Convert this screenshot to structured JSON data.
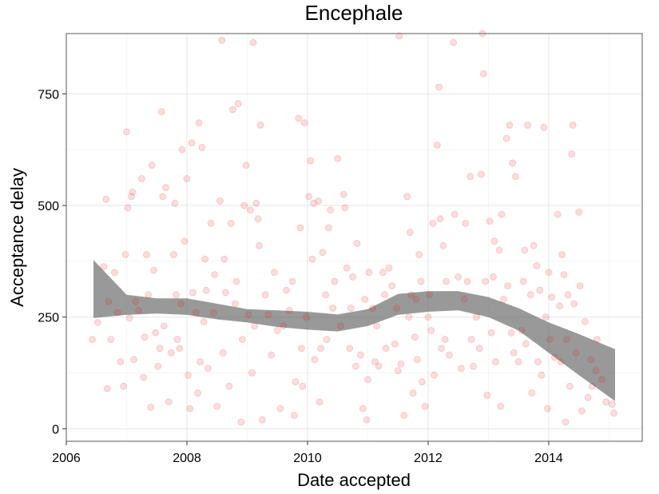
{
  "chart_data": {
    "type": "scatter",
    "title": "Encephale",
    "xlabel": "Date accepted",
    "ylabel": "Acceptance delay",
    "xlim": [
      2006.0,
      2015.55
    ],
    "ylim": [
      -28,
      885
    ],
    "xticks": [
      2006,
      2008,
      2010,
      2012,
      2014
    ],
    "xtick_labels": [
      "2006",
      "2008",
      "2010",
      "2012",
      "2014"
    ],
    "yticks": [
      0,
      250,
      500,
      750
    ],
    "ytick_labels": [
      "0",
      "250",
      "500",
      "750"
    ],
    "grid": true,
    "legend": "none",
    "point_color": "#e41a1c",
    "point_alpha": 0.15,
    "band_color": "#555555",
    "series": [
      {
        "type": "scatter",
        "points": [
          [
            2006.43,
            200
          ],
          [
            2006.52,
            238
          ],
          [
            2006.62,
            363
          ],
          [
            2006.66,
            514
          ],
          [
            2006.68,
            90
          ],
          [
            2006.7,
            285
          ],
          [
            2006.74,
            200
          ],
          [
            2006.8,
            350
          ],
          [
            2006.85,
            260
          ],
          [
            2006.9,
            150
          ],
          [
            2006.95,
            95
          ],
          [
            2006.98,
            390
          ],
          [
            2007.0,
            665
          ],
          [
            2007.02,
            495
          ],
          [
            2007.05,
            248
          ],
          [
            2007.08,
            520
          ],
          [
            2007.1,
            530
          ],
          [
            2007.12,
            155
          ],
          [
            2007.15,
            285
          ],
          [
            2007.2,
            265
          ],
          [
            2007.25,
            560
          ],
          [
            2007.28,
            115
          ],
          [
            2007.3,
            205
          ],
          [
            2007.33,
            390
          ],
          [
            2007.36,
            300
          ],
          [
            2007.4,
            48
          ],
          [
            2007.42,
            590
          ],
          [
            2007.45,
            355
          ],
          [
            2007.48,
            215
          ],
          [
            2007.52,
            140
          ],
          [
            2007.55,
            180
          ],
          [
            2007.58,
            710
          ],
          [
            2007.6,
            520
          ],
          [
            2007.62,
            230
          ],
          [
            2007.65,
            540
          ],
          [
            2007.7,
            60
          ],
          [
            2007.74,
            170
          ],
          [
            2007.78,
            390
          ],
          [
            2007.8,
            505
          ],
          [
            2007.82,
            300
          ],
          [
            2007.84,
            200
          ],
          [
            2007.88,
            180
          ],
          [
            2007.9,
            280
          ],
          [
            2007.92,
            625
          ],
          [
            2007.96,
            420
          ],
          [
            2008.0,
            560
          ],
          [
            2008.02,
            120
          ],
          [
            2008.05,
            45
          ],
          [
            2008.08,
            640
          ],
          [
            2008.1,
            305
          ],
          [
            2008.15,
            260
          ],
          [
            2008.18,
            80
          ],
          [
            2008.2,
            685
          ],
          [
            2008.22,
            150
          ],
          [
            2008.25,
            630
          ],
          [
            2008.28,
            240
          ],
          [
            2008.3,
            380
          ],
          [
            2008.32,
            310
          ],
          [
            2008.35,
            135
          ],
          [
            2008.4,
            460
          ],
          [
            2008.44,
            260
          ],
          [
            2008.46,
            345
          ],
          [
            2008.5,
            50
          ],
          [
            2008.55,
            510
          ],
          [
            2008.58,
            870
          ],
          [
            2008.6,
            170
          ],
          [
            2008.62,
            380
          ],
          [
            2008.64,
            305
          ],
          [
            2008.7,
            95
          ],
          [
            2008.73,
            460
          ],
          [
            2008.76,
            715
          ],
          [
            2008.8,
            280
          ],
          [
            2008.82,
            330
          ],
          [
            2008.85,
            728
          ],
          [
            2008.9,
            15
          ],
          [
            2008.92,
            200
          ],
          [
            2008.95,
            500
          ],
          [
            2008.98,
            590
          ],
          [
            2009.02,
            255
          ],
          [
            2009.05,
            490
          ],
          [
            2009.08,
            125
          ],
          [
            2009.1,
            865
          ],
          [
            2009.12,
            230
          ],
          [
            2009.15,
            505
          ],
          [
            2009.18,
            470
          ],
          [
            2009.2,
            410
          ],
          [
            2009.22,
            680
          ],
          [
            2009.25,
            20
          ],
          [
            2009.3,
            300
          ],
          [
            2009.35,
            255
          ],
          [
            2009.4,
            165
          ],
          [
            2009.45,
            350
          ],
          [
            2009.5,
            220
          ],
          [
            2009.55,
            45
          ],
          [
            2009.6,
            230
          ],
          [
            2009.65,
            310
          ],
          [
            2009.7,
            265
          ],
          [
            2009.75,
            330
          ],
          [
            2009.78,
            30
          ],
          [
            2009.8,
            105
          ],
          [
            2009.85,
            695
          ],
          [
            2009.88,
            450
          ],
          [
            2009.9,
            180
          ],
          [
            2009.92,
            95
          ],
          [
            2009.95,
            685
          ],
          [
            2009.98,
            250
          ],
          [
            2010.02,
            520
          ],
          [
            2010.05,
            600
          ],
          [
            2010.08,
            380
          ],
          [
            2010.1,
            505
          ],
          [
            2010.12,
            155
          ],
          [
            2010.18,
            510
          ],
          [
            2010.2,
            60
          ],
          [
            2010.22,
            180
          ],
          [
            2010.25,
            395
          ],
          [
            2010.3,
            300
          ],
          [
            2010.32,
            200
          ],
          [
            2010.35,
            450
          ],
          [
            2010.38,
            490
          ],
          [
            2010.42,
            270
          ],
          [
            2010.45,
            330
          ],
          [
            2010.5,
            605
          ],
          [
            2010.55,
            230
          ],
          [
            2010.6,
            525
          ],
          [
            2010.62,
            495
          ],
          [
            2010.65,
            360
          ],
          [
            2010.7,
            180
          ],
          [
            2010.72,
            270
          ],
          [
            2010.75,
            340
          ],
          [
            2010.8,
            140
          ],
          [
            2010.82,
            415
          ],
          [
            2010.88,
            165
          ],
          [
            2010.92,
            45
          ],
          [
            2010.95,
            290
          ],
          [
            2010.98,
            20
          ],
          [
            2011.0,
            110
          ],
          [
            2011.02,
            350
          ],
          [
            2011.08,
            270
          ],
          [
            2011.12,
            150
          ],
          [
            2011.15,
            230
          ],
          [
            2011.18,
            140
          ],
          [
            2011.25,
            350
          ],
          [
            2011.28,
            300
          ],
          [
            2011.3,
            180
          ],
          [
            2011.35,
            360
          ],
          [
            2011.4,
            320
          ],
          [
            2011.45,
            190
          ],
          [
            2011.48,
            270
          ],
          [
            2011.5,
            130
          ],
          [
            2011.52,
            880
          ],
          [
            2011.55,
            145
          ],
          [
            2011.6,
            30
          ],
          [
            2011.65,
            520
          ],
          [
            2011.68,
            250
          ],
          [
            2011.7,
            440
          ],
          [
            2011.72,
            300
          ],
          [
            2011.75,
            80
          ],
          [
            2011.78,
            205
          ],
          [
            2011.8,
            290
          ],
          [
            2011.82,
            155
          ],
          [
            2011.85,
            390
          ],
          [
            2011.88,
            330
          ],
          [
            2011.9,
            105
          ],
          [
            2011.95,
            50
          ],
          [
            2012.0,
            250
          ],
          [
            2012.02,
            300
          ],
          [
            2012.05,
            220
          ],
          [
            2012.08,
            460
          ],
          [
            2012.1,
            120
          ],
          [
            2012.15,
            635
          ],
          [
            2012.18,
            765
          ],
          [
            2012.2,
            470
          ],
          [
            2012.22,
            180
          ],
          [
            2012.25,
            410
          ],
          [
            2012.28,
            200
          ],
          [
            2012.3,
            330
          ],
          [
            2012.35,
            165
          ],
          [
            2012.42,
            865
          ],
          [
            2012.44,
            480
          ],
          [
            2012.5,
            340
          ],
          [
            2012.55,
            135
          ],
          [
            2012.6,
            290
          ],
          [
            2012.62,
            460
          ],
          [
            2012.65,
            330
          ],
          [
            2012.7,
            565
          ],
          [
            2012.72,
            200
          ],
          [
            2012.75,
            140
          ],
          [
            2012.8,
            250
          ],
          [
            2012.85,
            180
          ],
          [
            2012.88,
            570
          ],
          [
            2012.9,
            885
          ],
          [
            2012.92,
            795
          ],
          [
            2012.95,
            330
          ],
          [
            2012.98,
            75
          ],
          [
            2013.02,
            465
          ],
          [
            2013.05,
            215
          ],
          [
            2013.08,
            340
          ],
          [
            2013.1,
            420
          ],
          [
            2013.12,
            150
          ],
          [
            2013.18,
            400
          ],
          [
            2013.2,
            50
          ],
          [
            2013.22,
            480
          ],
          [
            2013.25,
            290
          ],
          [
            2013.3,
            650
          ],
          [
            2013.32,
            320
          ],
          [
            2013.35,
            680
          ],
          [
            2013.38,
            215
          ],
          [
            2013.4,
            595
          ],
          [
            2013.42,
            170
          ],
          [
            2013.45,
            565
          ],
          [
            2013.5,
            150
          ],
          [
            2013.55,
            220
          ],
          [
            2013.58,
            330
          ],
          [
            2013.6,
            400
          ],
          [
            2013.62,
            190
          ],
          [
            2013.65,
            680
          ],
          [
            2013.7,
            300
          ],
          [
            2013.72,
            80
          ],
          [
            2013.75,
            410
          ],
          [
            2013.8,
            365
          ],
          [
            2013.82,
            150
          ],
          [
            2013.85,
            310
          ],
          [
            2013.88,
            120
          ],
          [
            2013.92,
            675
          ],
          [
            2013.95,
            250
          ],
          [
            2013.98,
            45
          ],
          [
            2014.0,
            350
          ],
          [
            2014.02,
            200
          ],
          [
            2014.05,
            295
          ],
          [
            2014.1,
            160
          ],
          [
            2014.15,
            480
          ],
          [
            2014.18,
            275
          ],
          [
            2014.2,
            150
          ],
          [
            2014.22,
            390
          ],
          [
            2014.25,
            345
          ],
          [
            2014.28,
            15
          ],
          [
            2014.3,
            200
          ],
          [
            2014.32,
            300
          ],
          [
            2014.35,
            95
          ],
          [
            2014.38,
            615
          ],
          [
            2014.4,
            680
          ],
          [
            2014.42,
            280
          ],
          [
            2014.45,
            170
          ],
          [
            2014.5,
            485
          ],
          [
            2014.52,
            320
          ],
          [
            2014.55,
            40
          ],
          [
            2014.6,
            240
          ],
          [
            2014.65,
            70
          ],
          [
            2014.7,
            155
          ],
          [
            2014.72,
            95
          ],
          [
            2014.78,
            130
          ],
          [
            2014.8,
            200
          ],
          [
            2014.88,
            110
          ],
          [
            2014.95,
            60
          ],
          [
            2015.05,
            55
          ],
          [
            2015.08,
            35
          ]
        ]
      },
      {
        "type": "smooth-band",
        "name": "",
        "x": [
          2006.45,
          2007.0,
          2007.5,
          2008.0,
          2008.5,
          2009.0,
          2009.5,
          2010.0,
          2010.5,
          2011.0,
          2011.5,
          2012.0,
          2012.5,
          2013.0,
          2013.5,
          2014.0,
          2014.5,
          2015.1
        ],
        "lower": [
          248,
          255,
          258,
          255,
          245,
          238,
          228,
          222,
          218,
          230,
          255,
          262,
          265,
          250,
          220,
          170,
          120,
          62
        ],
        "upper": [
          378,
          300,
          292,
          292,
          280,
          268,
          265,
          262,
          256,
          268,
          302,
          308,
          308,
          295,
          270,
          238,
          212,
          178
        ]
      }
    ]
  }
}
